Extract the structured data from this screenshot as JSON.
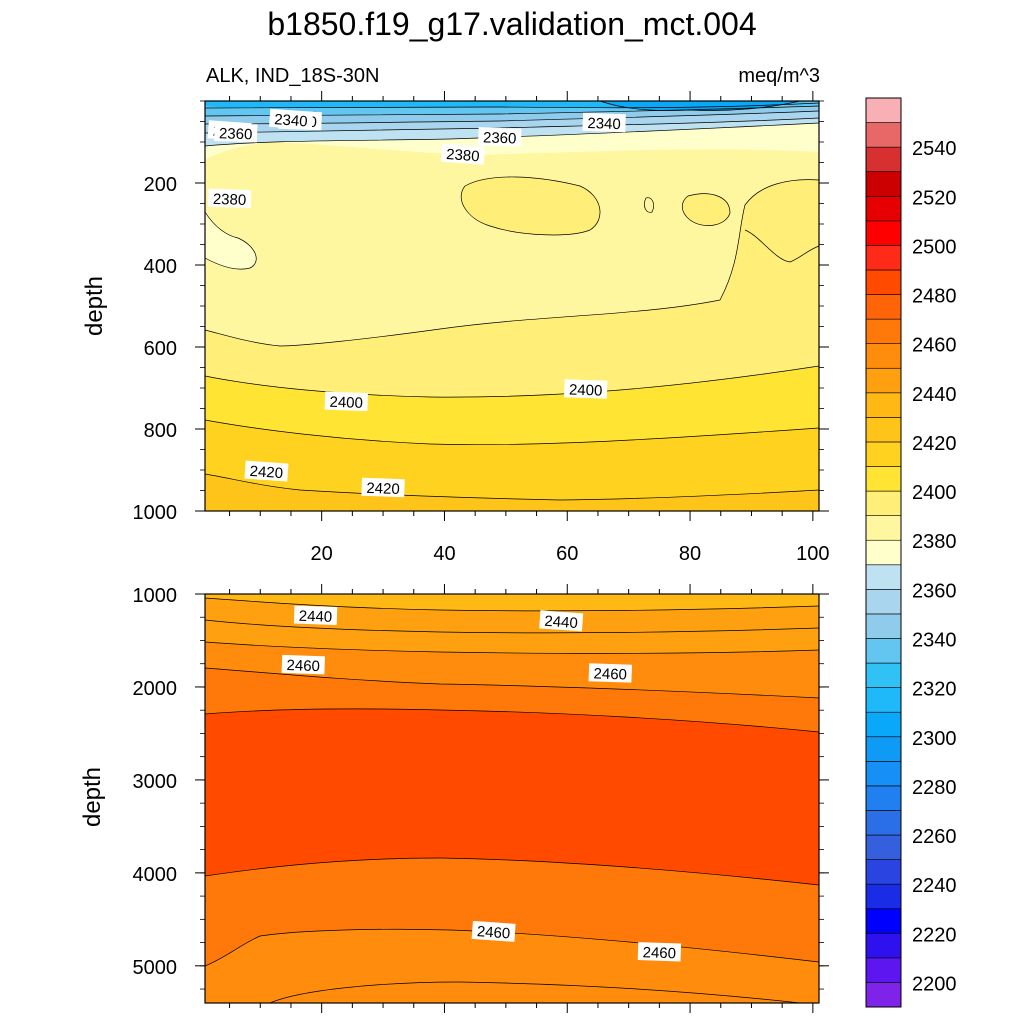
{
  "title": "b1850.f19_g17.validation_mct.004",
  "colorbar": {
    "levels": [
      2200,
      2210,
      2220,
      2230,
      2240,
      2250,
      2260,
      2270,
      2280,
      2290,
      2300,
      2310,
      2320,
      2330,
      2340,
      2350,
      2360,
      2370,
      2380,
      2390,
      2400,
      2410,
      2420,
      2430,
      2440,
      2450,
      2460,
      2470,
      2480,
      2490,
      2500,
      2510,
      2520,
      2530,
      2540,
      2550
    ],
    "colors": [
      "#7f22ea",
      "#5e16f0",
      "#2f10ef",
      "#0000ff",
      "#1a2ce6",
      "#2a44e1",
      "#3460dd",
      "#2a6ee8",
      "#2080f0",
      "#168ff7",
      "#0e9af5",
      "#0aa8f8",
      "#1fb8f8",
      "#30c2f4",
      "#62c6f0",
      "#8fcbea",
      "#a9d6ee",
      "#bfe2f2",
      "#ffffcc",
      "#fff6a0",
      "#ffee77",
      "#ffe433",
      "#ffd21f",
      "#ffc41a",
      "#ffb814",
      "#ffa010",
      "#ff8c0c",
      "#ff780a",
      "#ff6408",
      "#ff4a00",
      "#ff2a18",
      "#ff0000",
      "#e60000",
      "#cc0000",
      "#d83030",
      "#e86868",
      "#f8b0b4"
    ],
    "label_values": [
      2200,
      2220,
      2240,
      2260,
      2280,
      2300,
      2320,
      2340,
      2360,
      2380,
      2400,
      2420,
      2440,
      2460,
      2480,
      2500,
      2520,
      2540
    ],
    "label_text": [
      "2200",
      "2220",
      "2240",
      "2260",
      "2280",
      "2300",
      "2320",
      "2340",
      "2360",
      "2380",
      "2400",
      "2420",
      "2440",
      "2460",
      "2480",
      "2500",
      "2520",
      "2540"
    ]
  },
  "chart_data": [
    {
      "type": "contour",
      "left_label": "ALK, IND_18S-30N",
      "right_label": "meq/m^3",
      "ylabel": "depth",
      "xlim": [
        1,
        101
      ],
      "ylim": [
        0,
        1000
      ],
      "y_reversed": true,
      "x_ticks": [
        20,
        40,
        60,
        80,
        100
      ],
      "x_tick_labels": [
        "20",
        "40",
        "60",
        "80",
        "100"
      ],
      "y_ticks": [
        200,
        400,
        600,
        800,
        1000
      ],
      "y_tick_labels": [
        "200",
        "400",
        "600",
        "800",
        "1000"
      ],
      "contour_labels": [
        "2340",
        "2360",
        "2340",
        "2360",
        "2380",
        "2380",
        "2360",
        "2340",
        "2400",
        "2400",
        "2420",
        "2420"
      ],
      "contour_label_positions": [
        [
          16.5,
          50
        ],
        [
          5,
          75
        ],
        [
          66,
          55
        ],
        [
          49,
          90
        ],
        [
          43,
          132
        ],
        [
          5,
          240
        ],
        [
          6,
          80
        ],
        [
          15,
          47
        ],
        [
          24,
          735
        ],
        [
          63,
          705
        ],
        [
          11,
          905
        ],
        [
          30,
          945
        ]
      ]
    },
    {
      "type": "contour",
      "ylabel": "depth",
      "xlim": [
        1,
        101
      ],
      "ylim": [
        1000,
        5400
      ],
      "y_reversed": true,
      "y_ticks": [
        1000,
        2000,
        3000,
        4000,
        5000
      ],
      "y_tick_labels": [
        "1000",
        "2000",
        "3000",
        "4000",
        "5000"
      ],
      "contour_labels": [
        "2440",
        "2440",
        "2460",
        "2460",
        "2460",
        "2460"
      ],
      "contour_label_positions": [
        [
          19,
          1240
        ],
        [
          59,
          1300
        ],
        [
          17,
          1770
        ],
        [
          67,
          1860
        ],
        [
          48,
          4640
        ],
        [
          75,
          4860
        ]
      ]
    }
  ]
}
